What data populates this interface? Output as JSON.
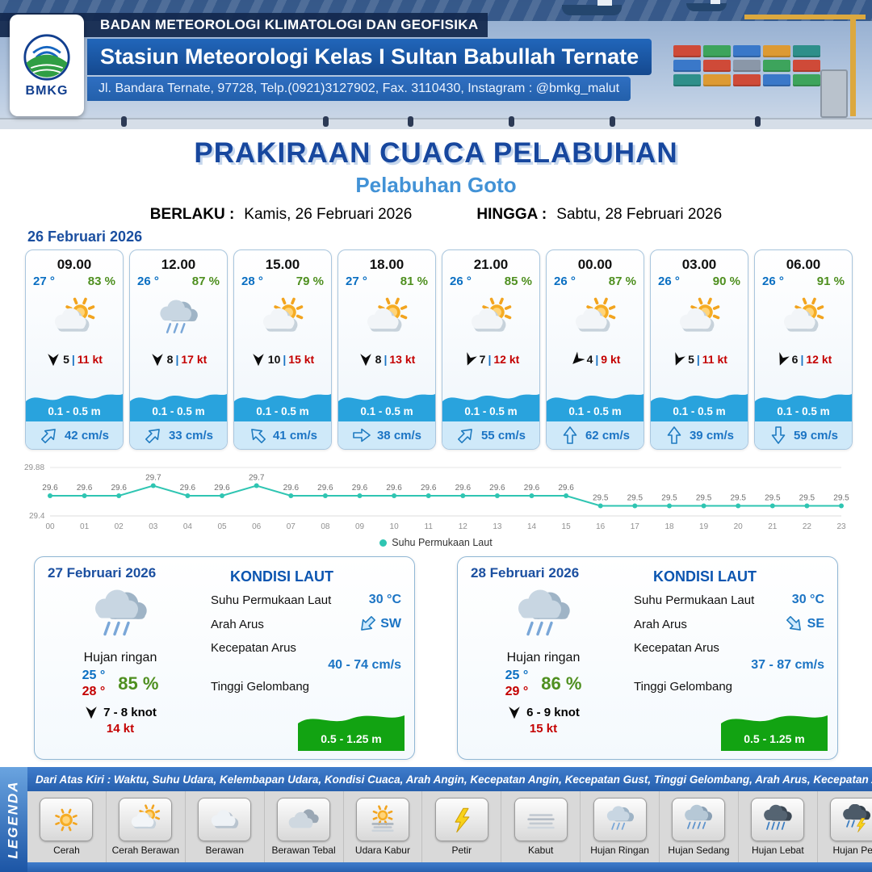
{
  "header": {
    "logo_text": "BMKG",
    "org": "BADAN METEOROLOGI KLIMATOLOGI DAN GEOFISIKA",
    "station": "Stasiun Meteorologi Kelas I Sultan Babullah Ternate",
    "address": "Jl. Bandara Ternate, 97728, Telp.(0921)3127902, Fax. 3110430, Instagram : @bmkg_malut"
  },
  "title": {
    "main": "PRAKIRAAN CUACA PELABUHAN",
    "port": "Pelabuhan Goto",
    "berlaku_label": "BERLAKU :",
    "berlaku_value": "Kamis, 26 Februari 2026",
    "hingga_label": "HINGGA :",
    "hingga_value": "Sabtu, 28 Februari 2026",
    "date_label": "26 Februari 2026"
  },
  "ui": {
    "separator": "|"
  },
  "hourly": {
    "cards": [
      {
        "time": "09.00",
        "temp": "27 °",
        "rh": "83 %",
        "icon": "cerah-berawan",
        "wind_dir": "S",
        "wind_speed": "5",
        "gust": "11 kt",
        "wave": "0.1 - 0.5 m",
        "current_dir": "NE",
        "current": "42 cm/s"
      },
      {
        "time": "12.00",
        "temp": "26 °",
        "rh": "87 %",
        "icon": "hujan-ringan",
        "wind_dir": "S",
        "wind_speed": "8",
        "gust": "17 kt",
        "wave": "0.1 - 0.5 m",
        "current_dir": "NE",
        "current": "33 cm/s"
      },
      {
        "time": "15.00",
        "temp": "28 °",
        "rh": "79 %",
        "icon": "cerah-berawan",
        "wind_dir": "S",
        "wind_speed": "10",
        "gust": "15 kt",
        "wave": "0.1 - 0.5 m",
        "current_dir": "NW",
        "current": "41 cm/s"
      },
      {
        "time": "18.00",
        "temp": "27 °",
        "rh": "81 %",
        "icon": "cerah-berawan",
        "wind_dir": "S",
        "wind_speed": "8",
        "gust": "13 kt",
        "wave": "0.1 - 0.5 m",
        "current_dir": "E",
        "current": "38 cm/s"
      },
      {
        "time": "21.00",
        "temp": "26 °",
        "rh": "85 %",
        "icon": "cerah-berawan",
        "wind_dir": "SSW",
        "wind_speed": "7",
        "gust": "12 kt",
        "wave": "0.1 - 0.5 m",
        "current_dir": "NE",
        "current": "55 cm/s"
      },
      {
        "time": "00.00",
        "temp": "26 °",
        "rh": "87 %",
        "icon": "cerah-berawan",
        "wind_dir": "SW",
        "wind_speed": "4",
        "gust": "9 kt",
        "wave": "0.1 - 0.5 m",
        "current_dir": "N",
        "current": "62 cm/s"
      },
      {
        "time": "03.00",
        "temp": "26 °",
        "rh": "90 %",
        "icon": "cerah-berawan",
        "wind_dir": "SSW",
        "wind_speed": "5",
        "gust": "11 kt",
        "wave": "0.1 - 0.5 m",
        "current_dir": "N",
        "current": "39 cm/s"
      },
      {
        "time": "06.00",
        "temp": "26 °",
        "rh": "91 %",
        "icon": "cerah-berawan",
        "wind_dir": "SSW",
        "wind_speed": "6",
        "gust": "12 kt",
        "wave": "0.1 - 0.5 m",
        "current_dir": "S",
        "current": "59 cm/s"
      }
    ]
  },
  "chart_data": {
    "type": "line",
    "title": "",
    "legend": "Suhu Permukaan Laut",
    "x": [
      "00",
      "01",
      "02",
      "03",
      "04",
      "05",
      "06",
      "07",
      "08",
      "09",
      "10",
      "11",
      "12",
      "13",
      "14",
      "15",
      "16",
      "17",
      "18",
      "19",
      "20",
      "21",
      "22",
      "23"
    ],
    "values": [
      29.6,
      29.6,
      29.6,
      29.7,
      29.6,
      29.6,
      29.7,
      29.6,
      29.6,
      29.6,
      29.6,
      29.6,
      29.6,
      29.6,
      29.6,
      29.6,
      29.5,
      29.5,
      29.5,
      29.5,
      29.5,
      29.5,
      29.5,
      29.5
    ],
    "ylim": [
      29.4,
      29.88
    ],
    "y_ticks": [
      "29.88",
      "29.4"
    ],
    "line_color": "#2fc5b2",
    "grid": true,
    "legend_position": "bottom"
  },
  "daily": [
    {
      "date": "27 Februari 2026",
      "icon": "hujan-ringan",
      "desc": "Hujan ringan",
      "temp_min": "25 °",
      "temp_max": "28 °",
      "rh": "85 %",
      "wind_dir": "S",
      "wind": "7 - 8 knot",
      "gust": "14 kt",
      "sea": {
        "title": "KONDISI LAUT",
        "sst_label": "Suhu Permukaan Laut",
        "sst_value": "30 °C",
        "current_dir_label": "Arah Arus",
        "current_dir": "SW",
        "current_speed_label": "Kecepatan Arus",
        "current_speed": "40 - 74 cm/s",
        "wave_label": "Tinggi Gelombang",
        "wave_value": "0.5 - 1.25 m"
      }
    },
    {
      "date": "28 Februari 2026",
      "icon": "hujan-ringan",
      "desc": "Hujan ringan",
      "temp_min": "25 °",
      "temp_max": "29 °",
      "rh": "86 %",
      "wind_dir": "S",
      "wind": "6 - 9 knot",
      "gust": "15 kt",
      "sea": {
        "title": "KONDISI LAUT",
        "sst_label": "Suhu Permukaan Laut",
        "sst_value": "30 °C",
        "current_dir_label": "Arah Arus",
        "current_dir": "SE",
        "current_speed_label": "Kecepatan Arus",
        "current_speed": "37 - 87 cm/s",
        "wave_label": "Tinggi Gelombang",
        "wave_value": "0.5 - 1.25 m"
      }
    }
  ],
  "legend": {
    "vertical": "LEGENDA",
    "strip": "Dari Atas Kiri : Waktu, Suhu Udara, Kelembapan Udara, Kondisi Cuaca, Arah Angin, Kecepatan Angin, Kecepatan Gust, Tinggi Gelombang, Arah Arus, Kecepatan Arus",
    "items": [
      {
        "label": "Cerah",
        "icon": "cerah"
      },
      {
        "label": "Cerah Berawan",
        "icon": "cerah-berawan"
      },
      {
        "label": "Berawan",
        "icon": "berawan"
      },
      {
        "label": "Berawan Tebal",
        "icon": "berawan-tebal"
      },
      {
        "label": "Udara Kabur",
        "icon": "udara-kabur"
      },
      {
        "label": "Petir",
        "icon": "petir"
      },
      {
        "label": "Kabut",
        "icon": "kabut"
      },
      {
        "label": "Hujan Ringan",
        "icon": "hujan-ringan"
      },
      {
        "label": "Hujan Sedang",
        "icon": "hujan-sedang"
      },
      {
        "label": "Hujan Lebat",
        "icon": "hujan-lebat"
      },
      {
        "label": "Hujan Petir",
        "icon": "hujan-petir"
      }
    ]
  },
  "colors": {
    "title_blue": "#17479e",
    "port_blue": "#4292d6",
    "temp_blue": "#0a6fc2",
    "temp_red": "#c40000",
    "humidity_green": "#4e8f1f",
    "wave_band_blue": "#29a3dd",
    "wave_box_green": "#12a312",
    "current_blue": "#1b74c4",
    "chart_teal": "#2fc5b2",
    "legend_bar_blue": "#2e6fc4",
    "header_navy": "#12284e",
    "ribbon_blue": "#2166ba"
  }
}
